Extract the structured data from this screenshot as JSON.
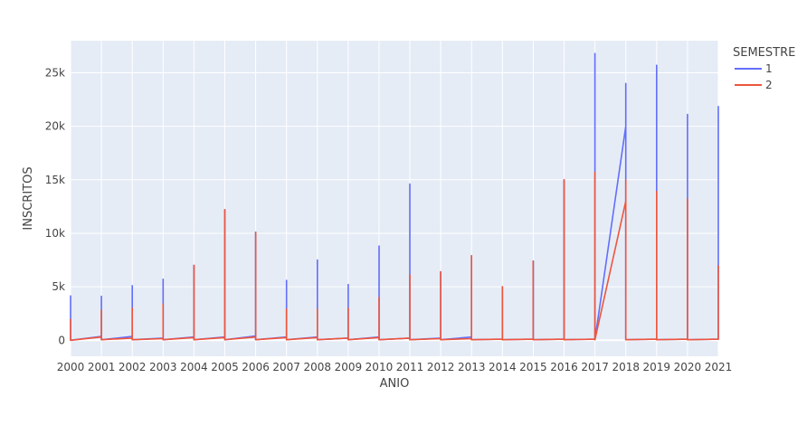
{
  "chart_data": {
    "type": "line",
    "xlabel": "ANIO",
    "ylabel": "INSCRITOS",
    "xlim": [
      2000,
      2021
    ],
    "ylim": [
      -1500,
      28000
    ],
    "x_ticks": [
      "2000",
      "2001",
      "2002",
      "2003",
      "2004",
      "2005",
      "2006",
      "2007",
      "2008",
      "2009",
      "2010",
      "2011",
      "2012",
      "2013",
      "2014",
      "2015",
      "2016",
      "2017",
      "2018",
      "2019",
      "2020",
      "2021"
    ],
    "y_ticks": [
      {
        "value": 0,
        "label": "0"
      },
      {
        "value": 5000,
        "label": "5k"
      },
      {
        "value": 10000,
        "label": "10k"
      },
      {
        "value": 15000,
        "label": "15k"
      },
      {
        "value": 20000,
        "label": "20k"
      },
      {
        "value": 25000,
        "label": "25k"
      }
    ],
    "grid": true,
    "legend": {
      "title": "SEMESTRE",
      "placement": "top-right"
    },
    "series": [
      {
        "name": "1",
        "color": "#636efa",
        "x": [
          2000,
          2000,
          2001,
          2001,
          2001,
          2002,
          2002,
          2002,
          2003,
          2003,
          2003,
          2004,
          2004,
          2004,
          2005,
          2005,
          2005,
          2006,
          2006,
          2006,
          2007,
          2007,
          2007,
          2008,
          2008,
          2008,
          2009,
          2009,
          2009,
          2010,
          2010,
          2010,
          2011,
          2011,
          2011,
          2012,
          2012,
          2012,
          2013,
          2013,
          2013,
          2014,
          2014,
          2014,
          2015,
          2015,
          2015,
          2016,
          2016,
          2016,
          2017,
          2017,
          2017,
          2018,
          2018,
          2018,
          2019,
          2019,
          2019,
          2020,
          2020,
          2020,
          2021,
          2021
        ],
        "y": [
          4200,
          0,
          350,
          4100,
          50,
          350,
          5100,
          50,
          200,
          5700,
          50,
          300,
          7000,
          50,
          300,
          12200,
          50,
          400,
          10100,
          50,
          300,
          5600,
          50,
          300,
          7500,
          50,
          200,
          5200,
          50,
          300,
          8800,
          50,
          200,
          14600,
          50,
          200,
          6400,
          50,
          300,
          7900,
          50,
          100,
          5000,
          50,
          100,
          7400,
          50,
          100,
          15000,
          50,
          100,
          26800,
          50,
          20000,
          24000,
          50,
          100,
          25700,
          50,
          100,
          21100,
          50,
          100,
          21900
        ]
      },
      {
        "name": "2",
        "color": "#ef553b",
        "x": [
          2000,
          2000,
          2001,
          2001,
          2001,
          2002,
          2002,
          2002,
          2003,
          2003,
          2003,
          2004,
          2004,
          2004,
          2005,
          2005,
          2005,
          2006,
          2006,
          2006,
          2007,
          2007,
          2007,
          2008,
          2008,
          2008,
          2009,
          2009,
          2009,
          2010,
          2010,
          2010,
          2011,
          2011,
          2011,
          2012,
          2012,
          2012,
          2013,
          2013,
          2013,
          2014,
          2014,
          2014,
          2015,
          2015,
          2015,
          2016,
          2016,
          2016,
          2017,
          2017,
          2017,
          2018,
          2018,
          2018,
          2019,
          2019,
          2019,
          2020,
          2020,
          2020,
          2021,
          2021
        ],
        "y": [
          2000,
          0,
          300,
          2800,
          50,
          200,
          3000,
          50,
          150,
          3400,
          50,
          250,
          7000,
          50,
          250,
          12200,
          50,
          300,
          10100,
          50,
          250,
          2900,
          50,
          250,
          2900,
          50,
          200,
          3000,
          50,
          250,
          4000,
          50,
          200,
          6100,
          50,
          150,
          6400,
          50,
          150,
          7900,
          50,
          100,
          5000,
          50,
          100,
          7400,
          50,
          100,
          15000,
          50,
          100,
          15700,
          50,
          13000,
          15000,
          50,
          100,
          13900,
          50,
          100,
          13200,
          50,
          100,
          7000
        ]
      }
    ]
  }
}
